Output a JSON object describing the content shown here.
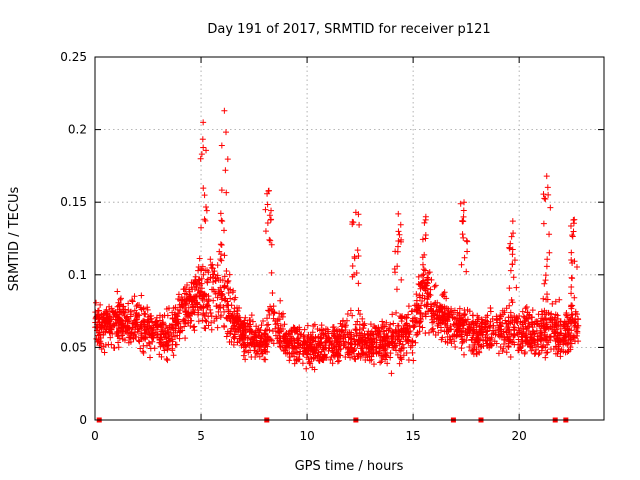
{
  "chart_data": {
    "type": "scatter",
    "title": "Day 191 of 2017, SRMTID for receiver p121",
    "xlabel": "GPS time / hours",
    "ylabel": "SRMTID / TECUs",
    "xlim": [
      0,
      24
    ],
    "ylim": [
      0,
      0.25
    ],
    "x_ticks": [
      0,
      5,
      10,
      15,
      20
    ],
    "x_tick_labels": [
      "0",
      "5",
      "10",
      "15",
      "20"
    ],
    "y_ticks": [
      0,
      0.05,
      0.1,
      0.15,
      0.2,
      0.25
    ],
    "y_tick_labels": [
      "0",
      "0.05",
      "0.1",
      "0.15",
      "0.2",
      "0.25"
    ],
    "grid": true,
    "marker": "+",
    "series_color": "#ff0000",
    "zero_markers_x": [
      0.2,
      8.1,
      12.3,
      16.9,
      18.2,
      21.7,
      22.2
    ],
    "envelope": {
      "x": [
        0.0,
        1.0,
        2.0,
        3.0,
        3.5,
        4.0,
        4.5,
        5.0,
        5.5,
        6.0,
        6.5,
        7.0,
        7.5,
        8.0,
        8.3,
        9.0,
        10.0,
        11.0,
        12.0,
        12.5,
        13.0,
        14.0,
        14.5,
        15.0,
        15.5,
        16.0,
        17.0,
        18.0,
        19.0,
        20.0,
        21.0,
        21.5,
        22.0,
        22.5,
        22.8
      ],
      "center": [
        0.065,
        0.068,
        0.066,
        0.06,
        0.055,
        0.072,
        0.08,
        0.085,
        0.09,
        0.088,
        0.07,
        0.06,
        0.055,
        0.052,
        0.07,
        0.055,
        0.05,
        0.052,
        0.055,
        0.055,
        0.052,
        0.055,
        0.058,
        0.065,
        0.09,
        0.075,
        0.065,
        0.06,
        0.062,
        0.062,
        0.06,
        0.065,
        0.058,
        0.065,
        0.065
      ],
      "spread": [
        0.03,
        0.028,
        0.03,
        0.03,
        0.032,
        0.028,
        0.03,
        0.04,
        0.055,
        0.055,
        0.035,
        0.025,
        0.025,
        0.025,
        0.04,
        0.025,
        0.025,
        0.025,
        0.03,
        0.03,
        0.025,
        0.03,
        0.035,
        0.035,
        0.04,
        0.035,
        0.03,
        0.03,
        0.03,
        0.03,
        0.035,
        0.04,
        0.03,
        0.035,
        0.03
      ]
    },
    "peaks": [
      {
        "x": 5.1,
        "value": 0.205
      },
      {
        "x": 6.1,
        "value": 0.213
      },
      {
        "x": 8.2,
        "value": 0.158
      },
      {
        "x": 12.3,
        "value": 0.143
      },
      {
        "x": 14.3,
        "value": 0.142
      },
      {
        "x": 15.6,
        "value": 0.14
      },
      {
        "x": 17.4,
        "value": 0.15
      },
      {
        "x": 19.7,
        "value": 0.137
      },
      {
        "x": 21.3,
        "value": 0.168
      },
      {
        "x": 22.6,
        "value": 0.138
      }
    ],
    "sample_count": 2600
  }
}
